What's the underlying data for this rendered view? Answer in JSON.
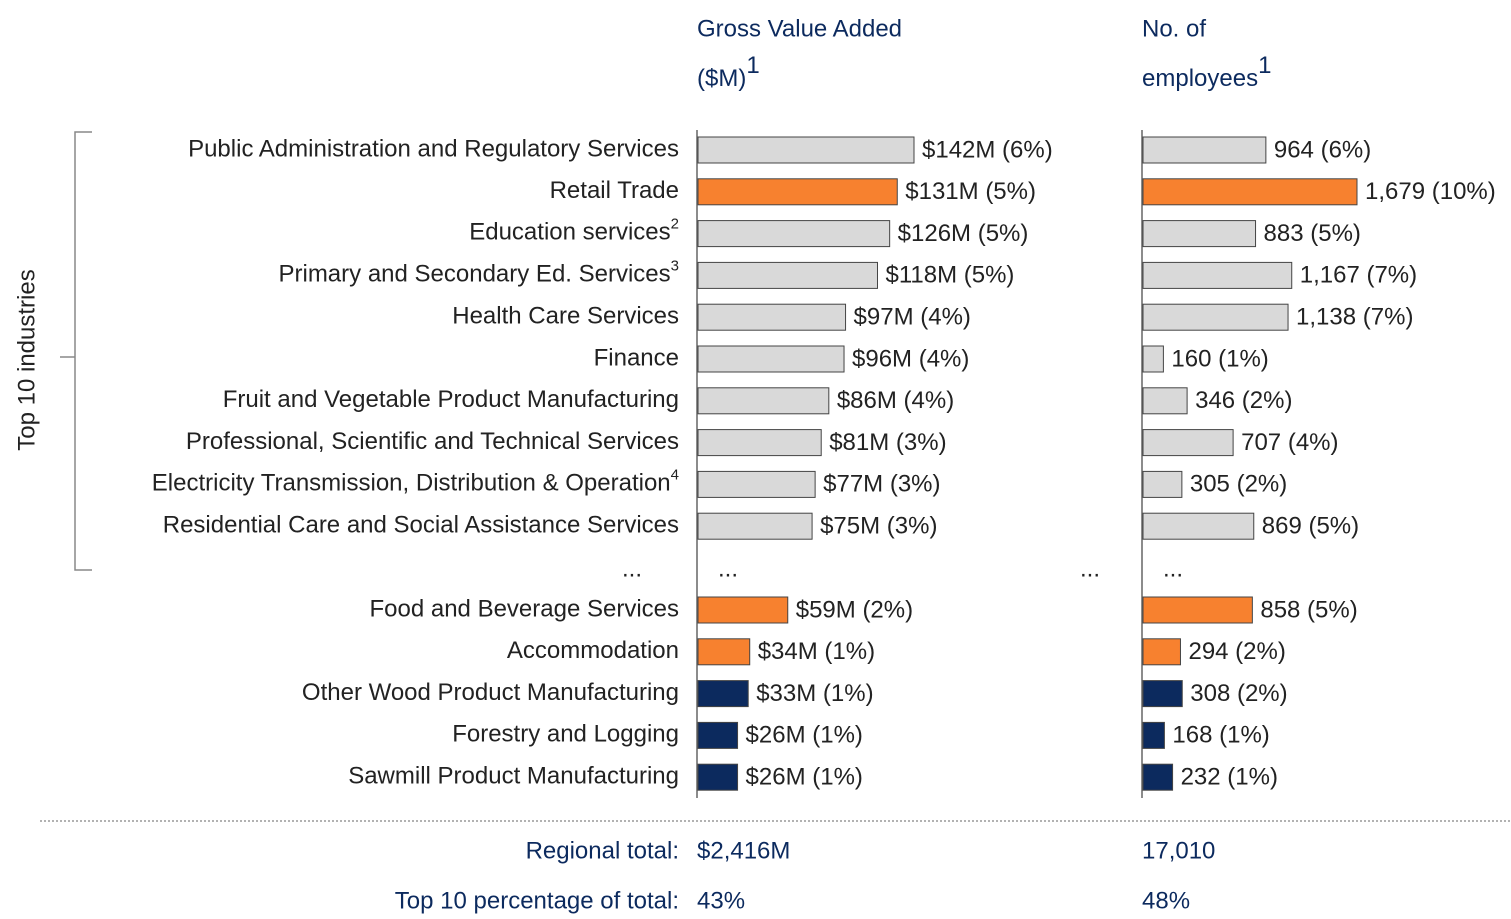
{
  "chart_data": [
    {
      "type": "bar",
      "orientation": "horizontal",
      "title": [
        "Gross Value Added",
        "($M)"
      ],
      "title_note": "1",
      "values": [
        142,
        131,
        126,
        118,
        97,
        96,
        86,
        81,
        77,
        75,
        59,
        34,
        33,
        26,
        26
      ],
      "value_labels": [
        "$142M (6%)",
        "$131M (5%)",
        "$126M (5%)",
        "$118M (5%)",
        "$97M (4%)",
        "$96M (4%)",
        "$86M (4%)",
        "$81M (3%)",
        "$77M (3%)",
        "$75M (3%)",
        "$59M (2%)",
        "$34M (1%)",
        "$33M (1%)",
        "$26M (1%)",
        "$26M (1%)"
      ]
    },
    {
      "type": "bar",
      "orientation": "horizontal",
      "title": [
        "No. of",
        "employees"
      ],
      "title_note": "1",
      "values": [
        964,
        1679,
        883,
        1167,
        1138,
        160,
        346,
        707,
        305,
        869,
        858,
        294,
        308,
        168,
        232
      ],
      "value_labels": [
        "964 (6%)",
        "1,679 (10%)",
        "883 (5%)",
        "1,167 (7%)",
        "1,138 (7%)",
        "160 (1%)",
        "346 (2%)",
        "707 (4%)",
        "305 (2%)",
        "869 (5%)",
        "858 (5%)",
        "294 (2%)",
        "308 (2%)",
        "168 (1%)",
        "232 (1%)"
      ]
    }
  ],
  "categories": [
    "Public Administration and Regulatory Services",
    "Retail Trade",
    "Education services",
    "Primary and Secondary Ed. Services",
    "Health Care Services",
    "Finance",
    "Fruit and Vegetable Product Manufacturing",
    "Professional, Scientific and Technical Services",
    "Electricity Transmission, Distribution & Operation",
    "Residential Care and Social Assistance Services",
    "Food and Beverage Services",
    "Accommodation",
    "Other Wood Product Manufacturing",
    "Forestry and Logging",
    "Sawmill Product Manufacturing"
  ],
  "category_notes": [
    null,
    null,
    "2",
    "3",
    null,
    null,
    null,
    null,
    "4",
    null,
    null,
    null,
    null,
    null,
    null
  ],
  "colors": [
    "#d9d9d9",
    "#f7812f",
    "#d9d9d9",
    "#d9d9d9",
    "#d9d9d9",
    "#d9d9d9",
    "#d9d9d9",
    "#d9d9d9",
    "#d9d9d9",
    "#d9d9d9",
    "#f7812f",
    "#f7812f",
    "#0c2a5e",
    "#0c2a5e",
    "#0c2a5e"
  ],
  "group_label": "Top 10 industries",
  "ellipsis": "...",
  "summary": [
    {
      "label": "Regional total:",
      "values": [
        "$2,416M",
        "17,010"
      ]
    },
    {
      "label": "Top 10 percentage of total:",
      "values": [
        "43%",
        "48%"
      ]
    }
  ]
}
